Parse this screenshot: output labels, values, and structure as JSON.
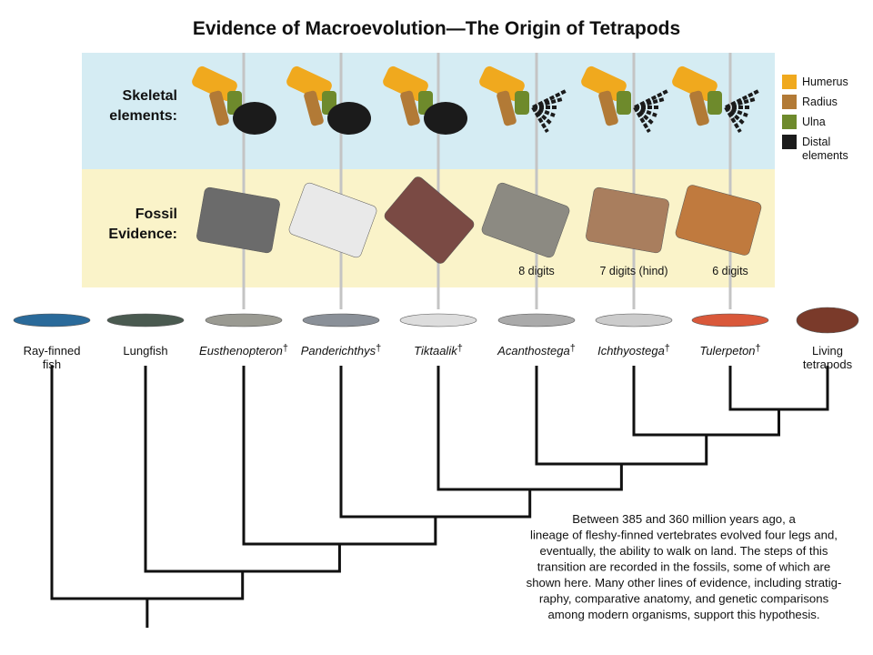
{
  "title": "Evidence of Macroevolution—The Origin of Tetrapods",
  "rows": [
    {
      "lines": [
        "Skeletal",
        "elements:"
      ]
    },
    {
      "lines": [
        "Fossil",
        "Evidence:"
      ]
    }
  ],
  "legend": [
    {
      "label": [
        "Humerus"
      ],
      "color": "#f0a91e"
    },
    {
      "label": [
        "Radius"
      ],
      "color": "#b27a36"
    },
    {
      "label": [
        "Ulna"
      ],
      "color": "#6e8a2c"
    },
    {
      "label": [
        "Distal",
        "elements"
      ],
      "color": "#1b1b1b"
    }
  ],
  "digits": [
    "8 digits",
    "7 digits (hind)",
    "6 digits"
  ],
  "taxa": [
    {
      "lines": [
        "Ray-finned",
        "fish"
      ]
    },
    {
      "lines": [
        "Lungfish"
      ]
    },
    {
      "lines": [
        "Eusthenopteron"
      ],
      "mark": "†"
    },
    {
      "lines": [
        "Panderichthys"
      ],
      "mark": "†"
    },
    {
      "lines": [
        "Tiktaalik"
      ],
      "mark": "†"
    },
    {
      "lines": [
        "Acanthostega"
      ],
      "mark": "†"
    },
    {
      "lines": [
        "Ichthyostega"
      ],
      "mark": "†"
    },
    {
      "lines": [
        "Tulerpeton"
      ],
      "mark": "†"
    },
    {
      "lines": [
        "Living",
        "tetrapods"
      ]
    }
  ],
  "paragraph": [
    "Between 385 and 360 million years ago, a",
    "lineage of fleshy-finned vertebrates evolved four legs and,",
    "eventually, the ability to walk on land. The steps of this",
    "transition are recorded in the fossils, some of which are",
    "shown here. Many other lines of evidence, including stratig-",
    "raphy, comparative anatomy, and genetic comparisons",
    "among modern organisms, support this hypothesis."
  ]
}
